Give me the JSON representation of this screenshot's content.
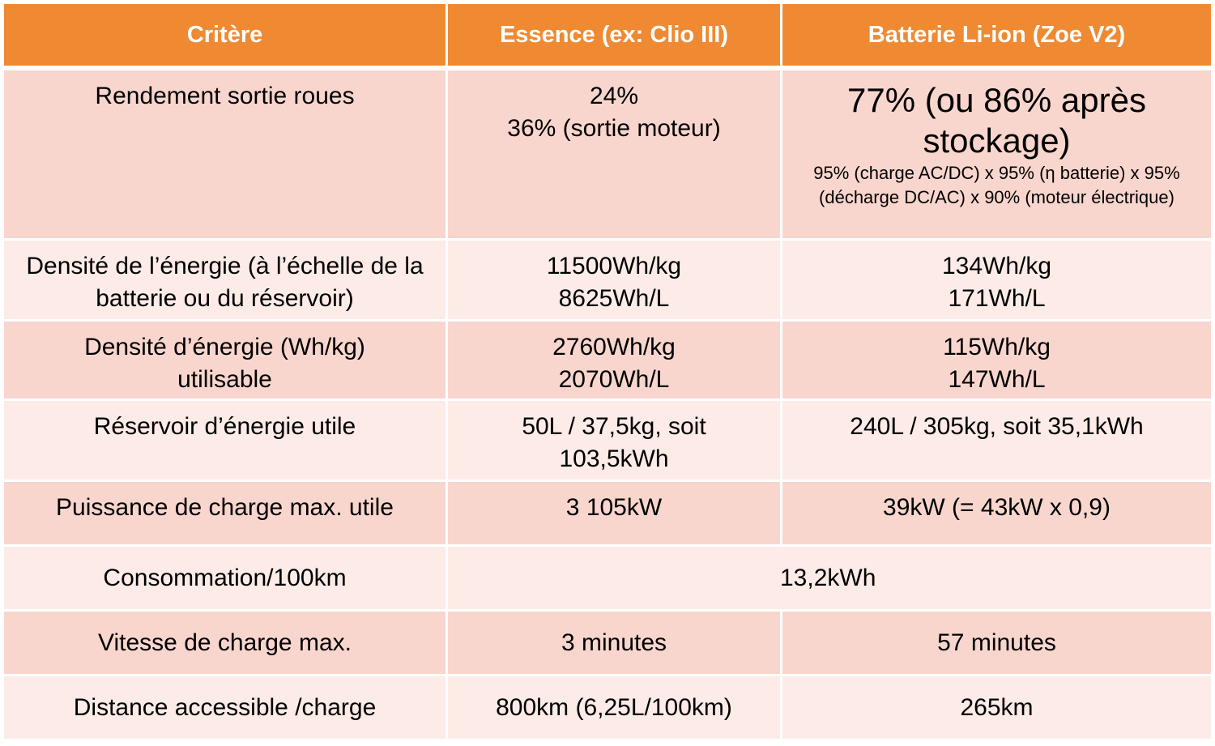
{
  "table": {
    "headers": [
      "Critère",
      "Essence (ex: Clio III)",
      "Batterie Li-ion (Zoe V2)"
    ],
    "rows": [
      {
        "criterion": "Rendement sortie roues",
        "essence": [
          "24%",
          "36% (sortie moteur)"
        ],
        "batterie_main": "77% (ou 86% après stockage)",
        "batterie_detail": "95% (charge AC/DC) x 95% (η batterie) x 95% (décharge DC/AC) x 90% (moteur électrique)"
      },
      {
        "criterion": "Densité de l’énergie (à l’échelle de la batterie ou du réservoir)",
        "essence": [
          "11500Wh/kg",
          "8625Wh/L"
        ],
        "batterie": [
          "134Wh/kg",
          "171Wh/L"
        ]
      },
      {
        "criterion": "Densité d’énergie (Wh/kg) utilisable",
        "essence": [
          "2760Wh/kg",
          "2070Wh/L"
        ],
        "batterie": [
          "115Wh/kg",
          "147Wh/L"
        ]
      },
      {
        "criterion": "Réservoir d’énergie utile",
        "essence": "50L / 37,5kg, soit 103,5kWh",
        "batterie": "240L / 305kg, soit 35,1kWh"
      },
      {
        "criterion": "Puissance de charge max. utile",
        "essence": "3 105kW",
        "batterie": "39kW (= 43kW x 0,9)"
      },
      {
        "criterion": "Consommation/100km",
        "shared": "13,2kWh"
      },
      {
        "criterion": "Vitesse de charge max.",
        "essence": "3 minutes",
        "batterie": "57 minutes"
      },
      {
        "criterion": "Distance accessible /charge",
        "essence": "800km (6,25L/100km)",
        "batterie": "265km"
      }
    ]
  },
  "colors": {
    "header_bg": "#ef8a32",
    "row_dark": "#f8d6cd",
    "row_light": "#fcebe7"
  }
}
